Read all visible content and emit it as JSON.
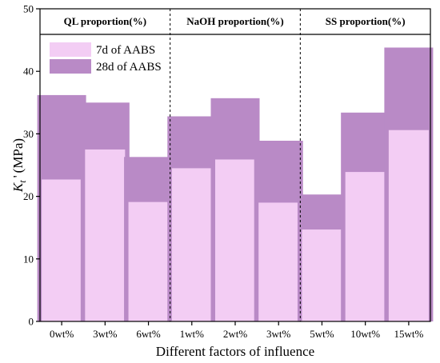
{
  "chart_data": {
    "type": "bar",
    "xlabel": "Different factors of influence",
    "ylabel_main": "K",
    "ylabel_sub": "t",
    "ylabel_prime": "'",
    "ylabel_unit": "(MPa)",
    "ylim": [
      0,
      50
    ],
    "yticks": [
      0,
      10,
      20,
      30,
      40,
      50
    ],
    "grid": false,
    "legend_position": "top-left",
    "categories": [
      "0wt%",
      "3wt%",
      "6wt%",
      "1wt%",
      "2wt%",
      "3wt%",
      "5wt%",
      "10wt%",
      "15wt%"
    ],
    "groups": [
      {
        "label": "QL proportion(%)",
        "count": 3
      },
      {
        "label": "NaOH proportion(%)",
        "count": 3
      },
      {
        "label": "SS proportion(%)",
        "count": 3
      }
    ],
    "series": [
      {
        "name": "28d of AABS",
        "color": "#b98ac6",
        "values": [
          36.2,
          35.0,
          26.3,
          32.8,
          35.7,
          28.9,
          20.3,
          33.4,
          43.8
        ]
      },
      {
        "name": "7d of AABS",
        "color": "#f3cdf4",
        "values": [
          22.7,
          27.5,
          19.1,
          24.5,
          25.9,
          19.0,
          14.7,
          23.9,
          30.6
        ]
      }
    ]
  }
}
